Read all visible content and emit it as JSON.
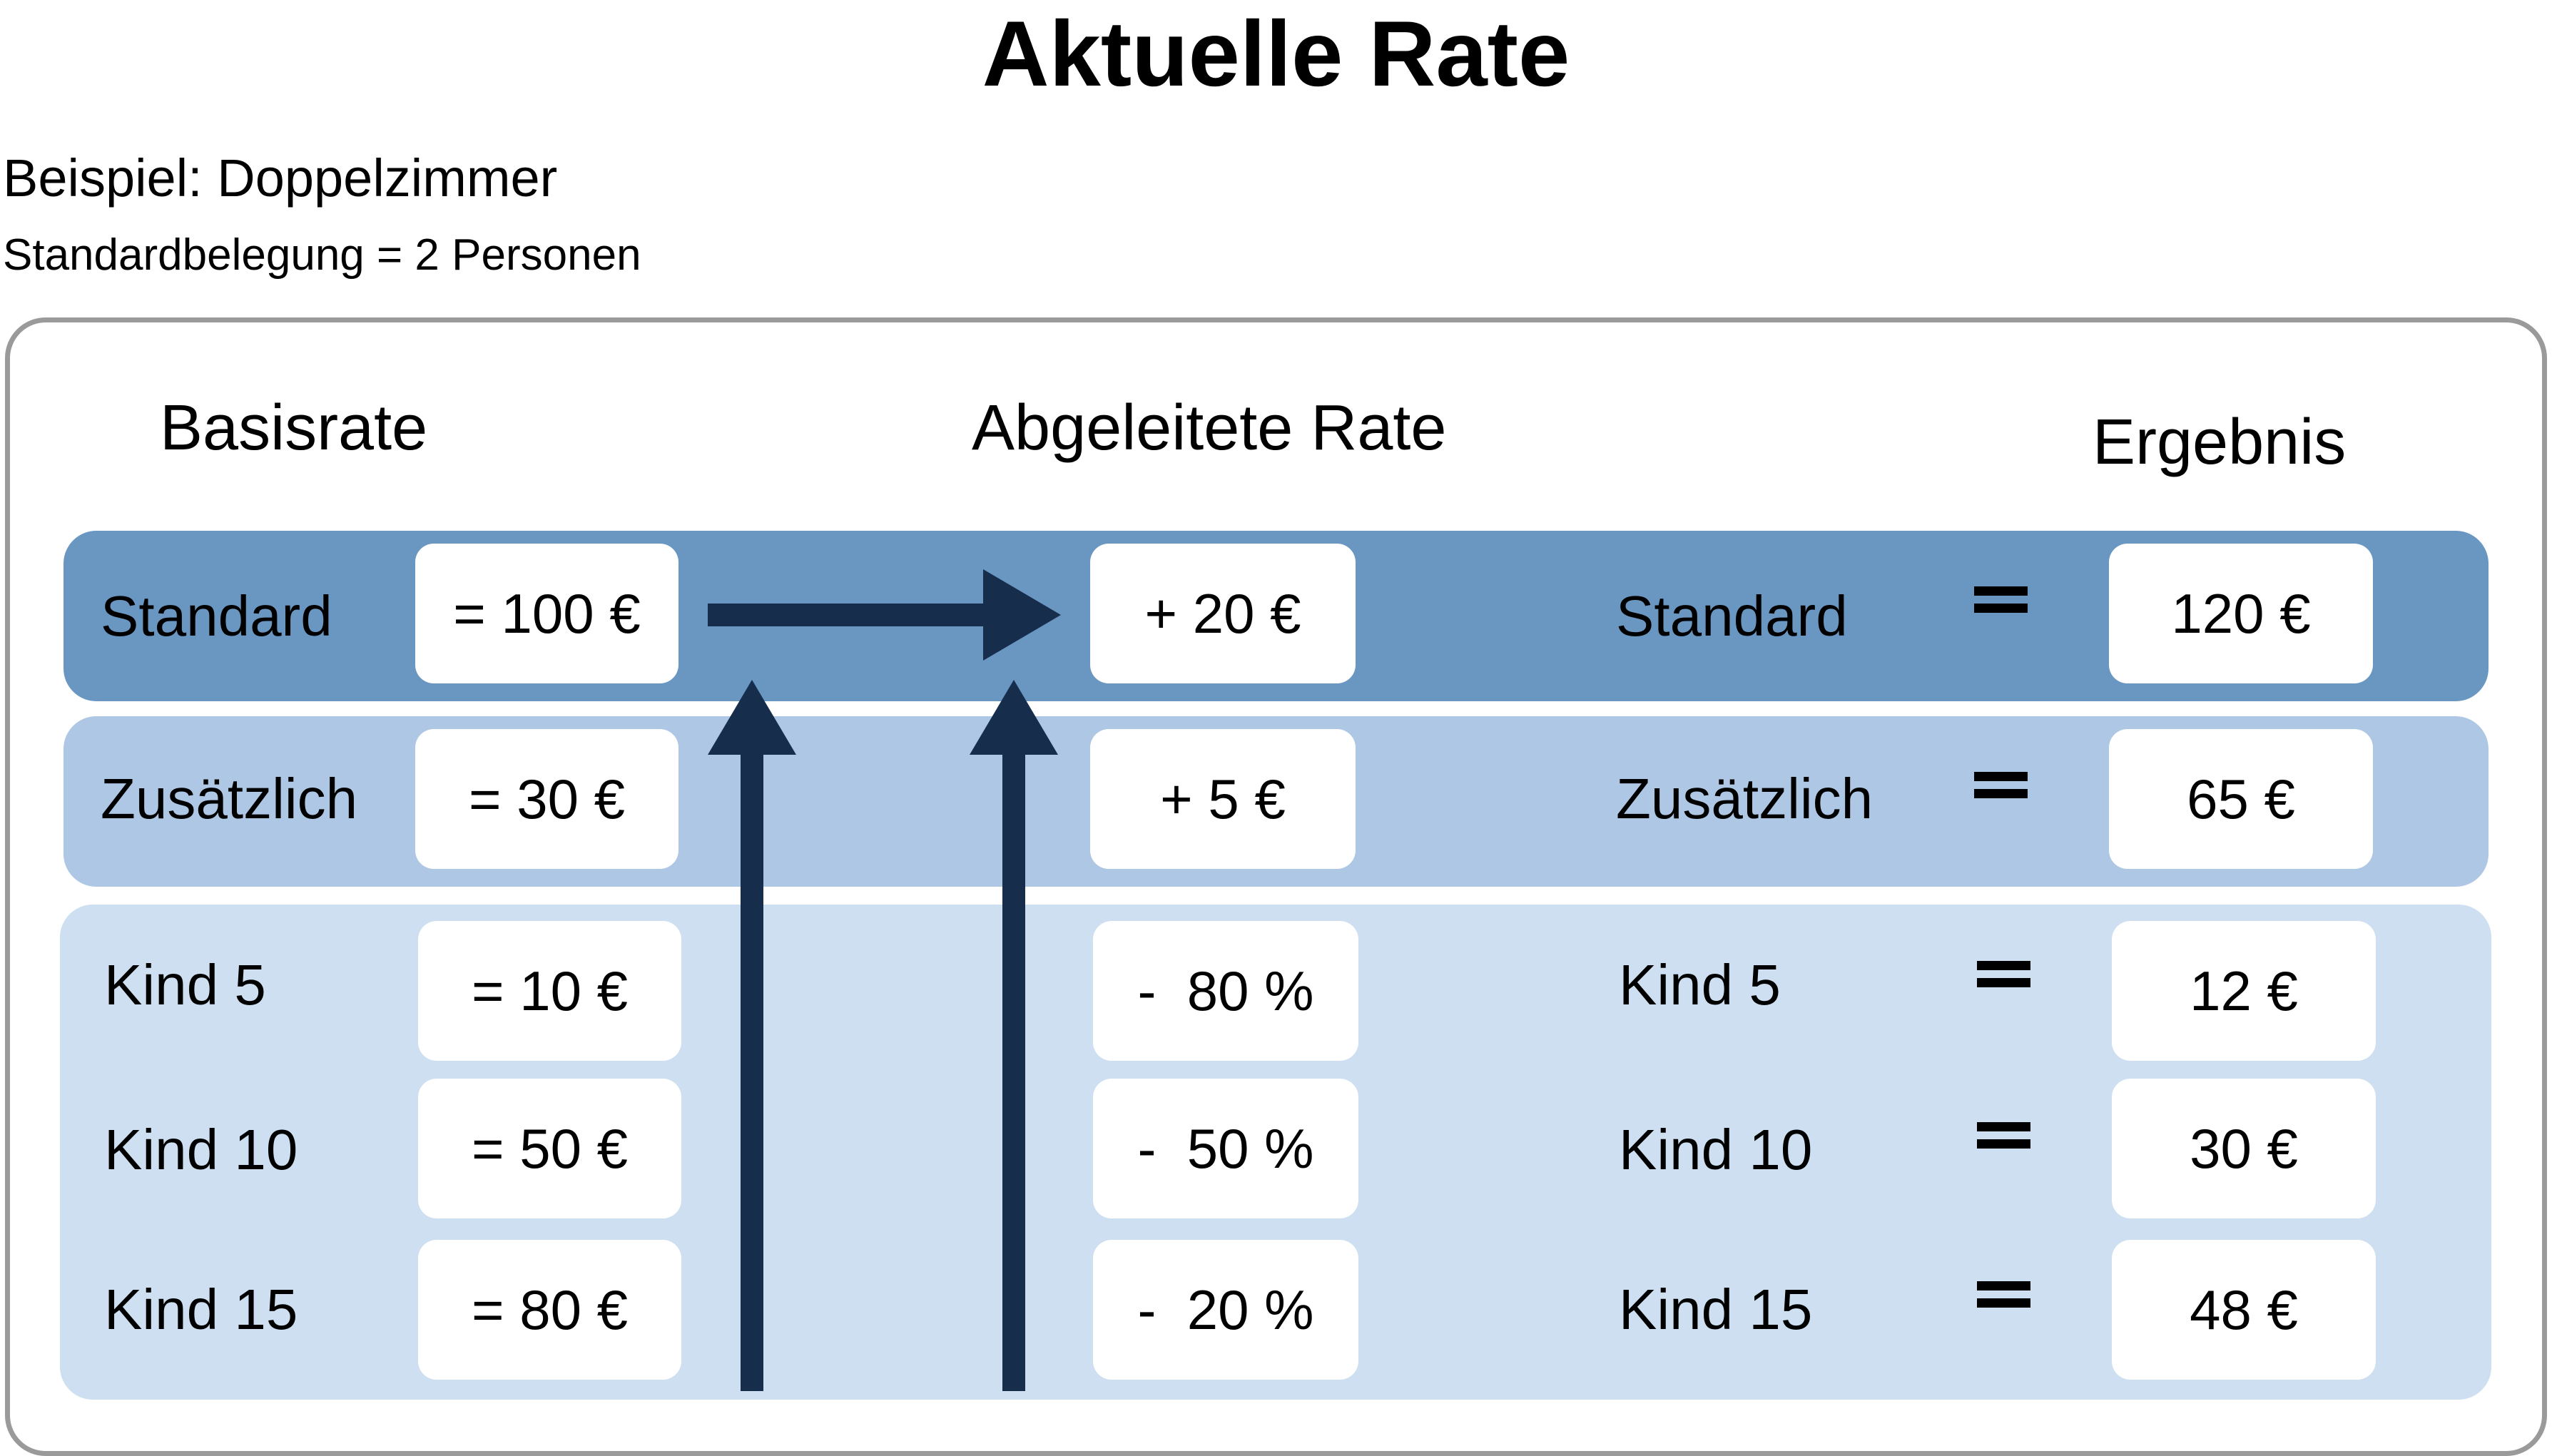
{
  "title": "Aktuelle Rate",
  "subtitle": "Beispiel: Doppelzimmer",
  "note": "Standardbelegung = 2 Personen",
  "headers": {
    "base": "Basisrate",
    "derived": "Abgeleitete Rate",
    "result": "Ergebnis"
  },
  "colors": {
    "row_standard": "#6a96c2",
    "row_additional": "#aec7e4",
    "row_children": "#cddff0",
    "arrow": "#162d4b",
    "frame": "#9a9a9a"
  },
  "rows": [
    {
      "label": "Standard",
      "base": "= 100 €",
      "derived": "+ 20 €",
      "result_label": "Standard",
      "equals": "=",
      "result": "120 €"
    },
    {
      "label": "Zusätzlich",
      "base": "= 30 €",
      "derived": "+ 5 €",
      "result_label": "Zusätzlich",
      "equals": "=",
      "result": "65 €"
    },
    {
      "label": "Kind 5",
      "base": "= 10 €",
      "derived": "-  80 %",
      "result_label": "Kind 5",
      "equals": "=",
      "result": "12 €"
    },
    {
      "label": "Kind 10",
      "base": "= 50 €",
      "derived": "-  50 %",
      "result_label": "Kind 10",
      "equals": "=",
      "result": "30 €"
    },
    {
      "label": "Kind 15",
      "base": "= 80 €",
      "derived": "-  20 %",
      "result_label": "Kind 15",
      "equals": "=",
      "result": "48 €"
    }
  ]
}
